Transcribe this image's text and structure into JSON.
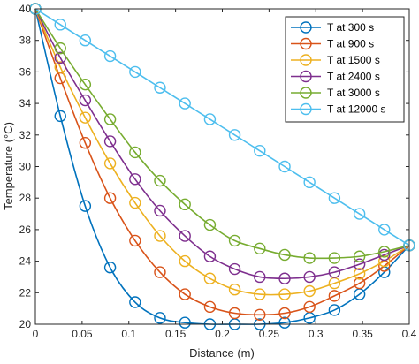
{
  "chart_data": {
    "type": "line",
    "title": "",
    "xlabel": "Distance (m)",
    "ylabel": "Temperature (°C)",
    "xlim": [
      0,
      0.4
    ],
    "ylim": [
      20,
      40
    ],
    "xticks": [
      "0",
      "0.05",
      "0.1",
      "0.15",
      "0.2",
      "0.25",
      "0.3",
      "0.35",
      "0.4"
    ],
    "yticks": [
      "20",
      "22",
      "24",
      "26",
      "28",
      "30",
      "32",
      "34",
      "36",
      "38",
      "40"
    ],
    "grid": false,
    "legend_position": "top-right",
    "marker": "circle",
    "x": [
      0,
      0.0267,
      0.0533,
      0.08,
      0.1067,
      0.1333,
      0.16,
      0.1867,
      0.2133,
      0.24,
      0.2667,
      0.2933,
      0.32,
      0.3467,
      0.3733,
      0.4
    ],
    "series": [
      {
        "name": "T at 300 s",
        "color": "#0072BD",
        "values": [
          40,
          33.2,
          27.5,
          23.6,
          21.4,
          20.4,
          20.1,
          20.0,
          20.0,
          20.0,
          20.1,
          20.4,
          20.9,
          21.9,
          23.3,
          25
        ]
      },
      {
        "name": "T at 900 s",
        "color": "#D95319",
        "values": [
          40,
          35.6,
          31.5,
          28.0,
          25.3,
          23.3,
          21.9,
          21.1,
          20.7,
          20.6,
          20.7,
          21.1,
          21.8,
          22.6,
          23.7,
          25
        ]
      },
      {
        "name": "T at 1500 s",
        "color": "#EDB120",
        "values": [
          40,
          36.3,
          33.1,
          30.2,
          27.7,
          25.6,
          24.0,
          22.9,
          22.2,
          21.9,
          21.9,
          22.1,
          22.6,
          23.2,
          24.0,
          25
        ]
      },
      {
        "name": "T at 2400 s",
        "color": "#7E2F8E",
        "values": [
          40,
          36.9,
          34.2,
          31.6,
          29.2,
          27.2,
          25.6,
          24.3,
          23.5,
          23.0,
          22.9,
          23.0,
          23.3,
          23.8,
          24.4,
          25
        ]
      },
      {
        "name": "T at 3000 s",
        "color": "#77AC30",
        "values": [
          40,
          37.5,
          35.2,
          33.0,
          30.9,
          29.1,
          27.6,
          26.3,
          25.3,
          24.8,
          24.4,
          24.2,
          24.2,
          24.3,
          24.6,
          25
        ]
      },
      {
        "name": "T at 12000 s",
        "color": "#4DBEEE",
        "values": [
          40,
          39.0,
          38.0,
          37.0,
          36.0,
          35.0,
          34.0,
          33.0,
          32.0,
          31.0,
          30.0,
          29.0,
          28.0,
          27.0,
          26.0,
          25
        ]
      }
    ]
  }
}
